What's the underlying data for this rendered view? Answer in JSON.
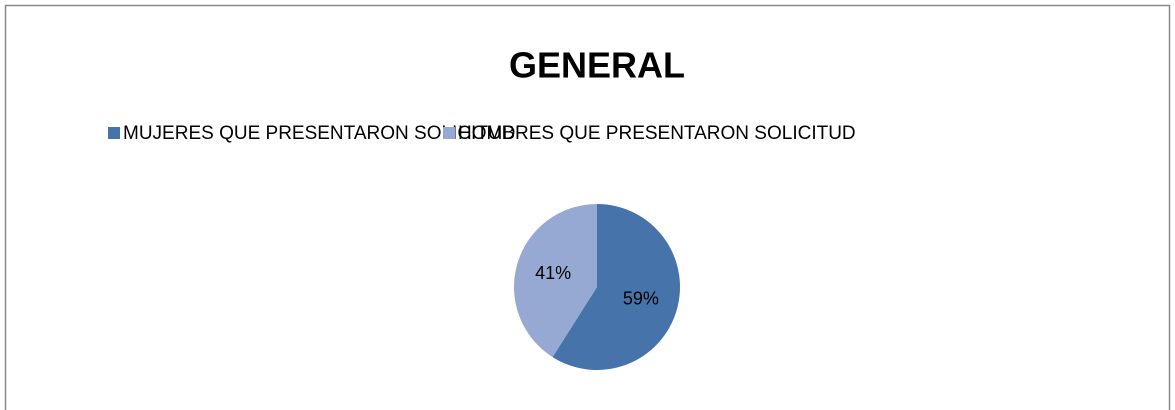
{
  "chart_data": {
    "type": "pie",
    "title": "GENERAL",
    "categories": [
      "MUJERES QUE PRESENTARON SOLICITUD",
      "HOMBRES QUE PRESENTARON SOLICITUD"
    ],
    "values": [
      59,
      41
    ],
    "value_labels": [
      "59%",
      "41%"
    ],
    "colors": [
      "#4673a9",
      "#95a9d3"
    ],
    "legend": "top"
  }
}
